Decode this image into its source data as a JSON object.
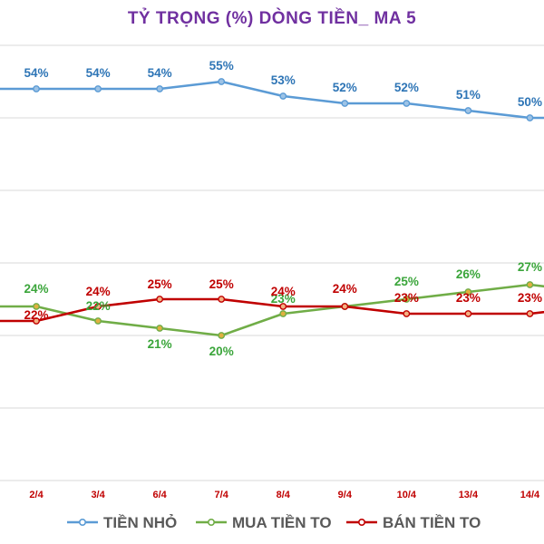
{
  "chart_data": {
    "type": "line",
    "title": "TỶ TRỌNG (%) DÒNG TIỀN_ MA 5",
    "categories": [
      "",
      "2/4",
      "3/4",
      "6/4",
      "7/4",
      "8/4",
      "9/4",
      "10/4",
      "13/4",
      "14/4",
      ""
    ],
    "ylim": [
      0,
      60
    ],
    "grid": true,
    "legend_position": "bottom",
    "series": [
      {
        "name": "TIỀN NHỎ",
        "color": "#5b9bd5",
        "label_color": "#2e75b6",
        "values": [
          54,
          54,
          54,
          54,
          55,
          53,
          52,
          52,
          51,
          50,
          50
        ],
        "labels": [
          null,
          "54%",
          "54%",
          "54%",
          "55%",
          "53%",
          "52%",
          "52%",
          "51%",
          "50%",
          null
        ]
      },
      {
        "name": "MUA TIỀN TO",
        "color": "#70ad47",
        "label_color": "#3aa53a",
        "values": [
          24,
          24,
          22,
          21,
          20,
          23,
          24,
          25,
          26,
          27,
          26
        ],
        "labels": [
          null,
          "24%",
          "22%",
          "21%",
          "20%",
          "23%",
          null,
          "25%",
          "26%",
          "27%",
          null
        ]
      },
      {
        "name": "BÁN TIỀN TO",
        "color": "#c00000",
        "label_color": "#c00000",
        "values": [
          22,
          22,
          24,
          25,
          25,
          24,
          24,
          23,
          23,
          23,
          24
        ],
        "labels": [
          null,
          "22%",
          "24%",
          "25%",
          "25%",
          "24%",
          "24%",
          "23%",
          "23%",
          "23%",
          null
        ]
      }
    ]
  }
}
